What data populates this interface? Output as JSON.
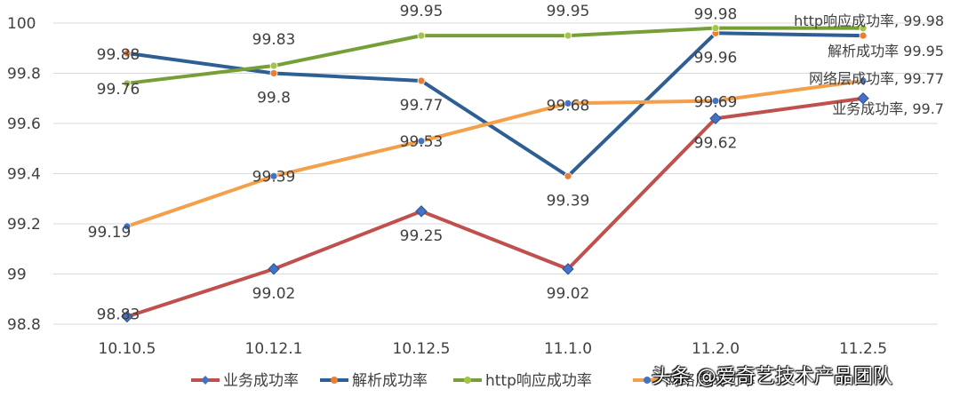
{
  "chart_data": {
    "type": "line",
    "categories": [
      "10.10.5",
      "10.12.1",
      "10.12.5",
      "11.1.0",
      "11.2.0",
      "11.2.5"
    ],
    "ylim": [
      98.8,
      100
    ],
    "yticks": [
      "98.8",
      "99",
      "99.2",
      "99.4",
      "99.6",
      "99.8",
      "100"
    ],
    "grid": true,
    "legend_position": "bottom",
    "series": [
      {
        "name": "业务成功率",
        "values": [
          98.83,
          99.02,
          99.25,
          99.02,
          99.62,
          99.7
        ],
        "labels": [
          "98.83",
          "99.02",
          "99.25",
          "99.02",
          "99.62",
          "99.7"
        ],
        "end_label": "业务成功率, 99.7",
        "color": "#c0504d",
        "marker": "diamond",
        "marker_color": "#4472c4"
      },
      {
        "name": "解析成功率",
        "values": [
          99.88,
          99.8,
          99.77,
          99.39,
          99.96,
          99.95
        ],
        "labels": [
          "99.88",
          "99.8",
          "99.77",
          "99.39",
          "99.96",
          "99.95"
        ],
        "end_label": "解析成功率 99.95",
        "color": "#2e5f94",
        "marker": "circle",
        "marker_color": "#ed7d31"
      },
      {
        "name": "http响应成功率",
        "values": [
          99.76,
          99.83,
          99.95,
          99.95,
          99.98,
          99.98
        ],
        "labels": [
          "99.76",
          "99.83",
          "99.95",
          "99.95",
          "99.98",
          "99.98"
        ],
        "end_label": "http响应成功率, 99.98",
        "color": "#76a037",
        "marker": "circle",
        "marker_color": "#a5c24a"
      },
      {
        "name": "网络层成功率",
        "values": [
          99.19,
          99.39,
          99.53,
          99.68,
          99.69,
          99.77
        ],
        "labels": [
          "99.19",
          "99.39",
          "99.53",
          "99.68",
          "99.69",
          "99.77"
        ],
        "end_label": "网络层成功率, 99.77",
        "color": "#f4a04a",
        "marker": "circle",
        "marker_color": "#4472c4"
      }
    ]
  },
  "watermark": "头条 @爱奇艺技术产品团队"
}
